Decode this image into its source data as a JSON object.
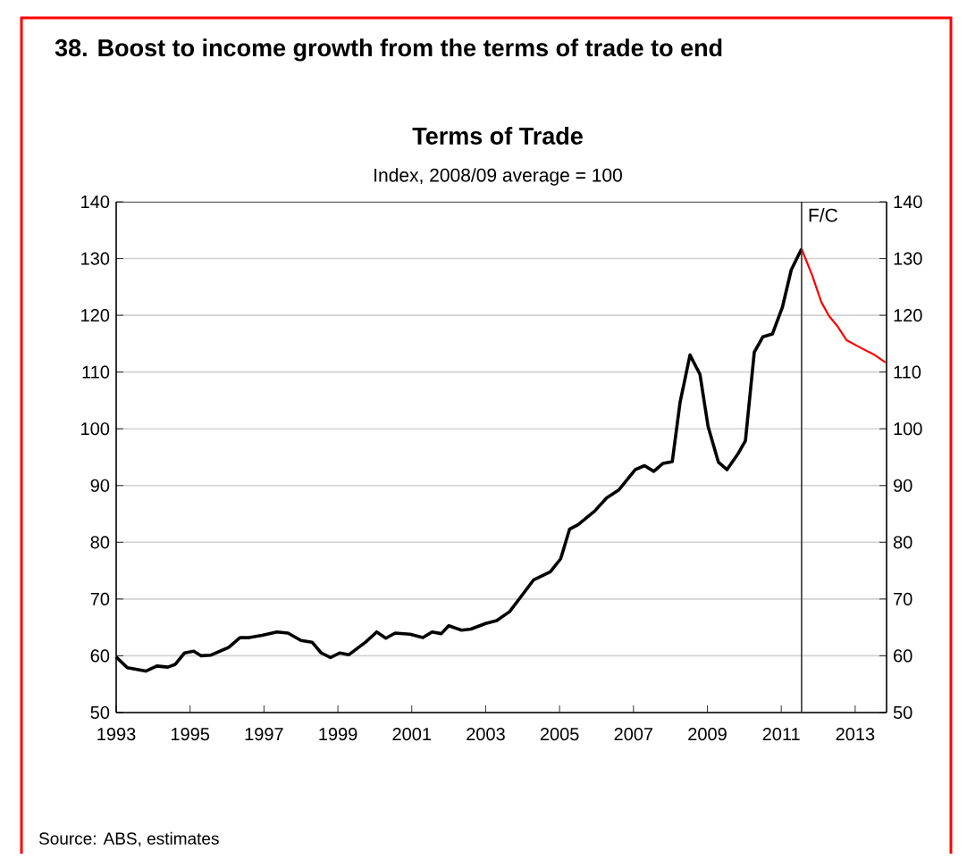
{
  "chart_data": {
    "type": "line",
    "title": "38. Boost to income growth from the terms of trade to end",
    "subtitle": "Terms of Trade",
    "annotations": [
      "Index, 2008/09 average = 100",
      "Source: ABS, estimates"
    ],
    "xlim": [
      1993,
      2013.85
    ],
    "xticks": [
      1993,
      1995,
      1997,
      1999,
      2001,
      2003,
      2005,
      2007,
      2009,
      2011,
      2013
    ],
    "ylim": [
      50,
      140
    ],
    "yticks": [
      50,
      60,
      70,
      80,
      90,
      100,
      110,
      120,
      130,
      140
    ],
    "y2lim": [
      50,
      140
    ],
    "y2ticks": [
      50,
      60,
      70,
      80,
      90,
      100,
      110,
      120,
      130,
      140
    ],
    "grid": "y",
    "ref_lines": [
      {
        "axis": "x",
        "value": 2011.55,
        "label": "F/C",
        "color": "#333333"
      }
    ],
    "series": [
      {
        "color": "#000000",
        "x": [
          1993,
          1993.3,
          1993.8,
          1994.1,
          1994.4,
          1994.6,
          1994.85,
          1995.1,
          1995.3,
          1995.55,
          1996.05,
          1996.35,
          1996.6,
          1996.95,
          1997.35,
          1997.65,
          1998.0,
          1998.3,
          1998.55,
          1998.8,
          1999.05,
          1999.3,
          1999.75,
          2000.05,
          2000.3,
          2000.55,
          2000.95,
          2001.3,
          2001.55,
          2001.8,
          2002.0,
          2002.35,
          2002.6,
          2003.0,
          2003.3,
          2003.65,
          2004.0,
          2004.3,
          2004.75,
          2005.03,
          2005.27,
          2005.5,
          2005.95,
          2006.27,
          2006.6,
          2007.05,
          2007.3,
          2007.55,
          2007.8,
          2008.05,
          2008.26,
          2008.53,
          2008.8,
          2009.02,
          2009.3,
          2009.53,
          2009.82,
          2010.03,
          2010.27,
          2010.5,
          2010.76,
          2011.03,
          2011.27,
          2011.55
        ],
        "values": [
          59.8,
          57.9,
          57.3,
          58.2,
          58.0,
          58.5,
          60.5,
          60.8,
          60.0,
          60.1,
          61.5,
          63.2,
          63.2,
          63.6,
          64.2,
          64.0,
          62.7,
          62.4,
          60.5,
          59.7,
          60.5,
          60.2,
          62.4,
          64.2,
          63.1,
          64.0,
          63.8,
          63.2,
          64.2,
          63.9,
          65.3,
          64.5,
          64.7,
          65.7,
          66.2,
          67.8,
          70.8,
          73.4,
          74.8,
          77.1,
          82.3,
          83.1,
          85.5,
          87.8,
          89.2,
          92.8,
          93.5,
          92.5,
          93.9,
          94.2,
          104.6,
          113.0,
          109.6,
          100.4,
          94.1,
          92.8,
          95.5,
          97.9,
          113.5,
          116.2,
          116.7,
          121.4,
          128.0,
          131.7
        ]
      },
      {
        "color": "#ff0000",
        "x": [
          2011.55,
          2011.84,
          2012.08,
          2012.29,
          2012.53,
          2012.77,
          2013.2,
          2013.53,
          2013.82
        ],
        "values": [
          131.7,
          127.0,
          122.4,
          119.9,
          118.0,
          115.6,
          114.1,
          113.0,
          111.7
        ]
      }
    ]
  }
}
